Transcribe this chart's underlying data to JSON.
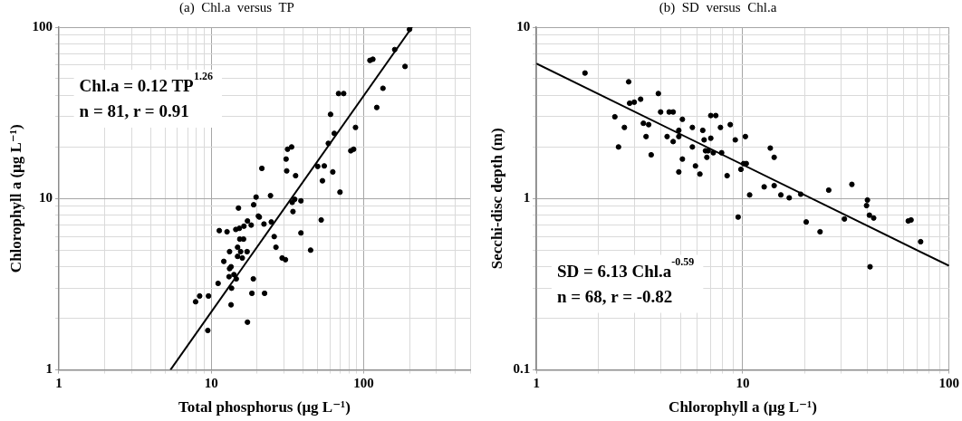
{
  "chart_data": [
    {
      "type": "scatter",
      "title": "(a)  Chl.a  versus  TP",
      "xlabel": "Total phosphorus (μg L⁻¹)",
      "ylabel": "Chlorophyll a (μg L⁻¹)",
      "annotations": [
        "Chl.a = 0.12 TP$^{1.26}$",
        "n = 81, r = 0.91"
      ],
      "log": "xy",
      "xlim": [
        1,
        500
      ],
      "ylim": [
        1,
        100
      ],
      "xticks": [
        1,
        {
          "value": 2,
          "label": null
        },
        {
          "value": 3,
          "label": null
        },
        {
          "value": 4,
          "label": null
        },
        {
          "value": 5,
          "label": null
        },
        {
          "value": 6,
          "label": null
        },
        {
          "value": 7,
          "label": null
        },
        {
          "value": 8,
          "label": null
        },
        {
          "value": 9,
          "label": null
        },
        10,
        {
          "value": 20,
          "label": null
        },
        {
          "value": 30,
          "label": null
        },
        {
          "value": 40,
          "label": null
        },
        {
          "value": 50,
          "label": null
        },
        {
          "value": 60,
          "label": null
        },
        {
          "value": 70,
          "label": null
        },
        {
          "value": 80,
          "label": null
        },
        {
          "value": 90,
          "label": null
        },
        100,
        {
          "value": 200,
          "label": null
        },
        {
          "value": 300,
          "label": null
        },
        {
          "value": 400,
          "label": null
        },
        {
          "value": 500,
          "label": null
        }
      ],
      "yticks": [
        1,
        {
          "value": 2,
          "label": null
        },
        {
          "value": 3,
          "label": null
        },
        {
          "value": 4,
          "label": null
        },
        {
          "value": 5,
          "label": null
        },
        {
          "value": 6,
          "label": null
        },
        {
          "value": 7,
          "label": null
        },
        {
          "value": 8,
          "label": null
        },
        {
          "value": 9,
          "label": null
        },
        10,
        {
          "value": 20,
          "label": null
        },
        {
          "value": 30,
          "label": null
        },
        {
          "value": 40,
          "label": null
        },
        {
          "value": 50,
          "label": null
        },
        {
          "value": 60,
          "label": null
        },
        {
          "value": 70,
          "label": null
        },
        {
          "value": 80,
          "label": null
        },
        {
          "value": 90,
          "label": null
        },
        100
      ],
      "grid": true,
      "legend": false,
      "marker": "circle",
      "series": [
        {
          "type": "scatter",
          "color": "#000000",
          "x": [
            7.9,
            8.4,
            9.6,
            9.5,
            11.1,
            13.5,
            13.6,
            13.1,
            14.1,
            14.6,
            13.2,
            13.5,
            12.1,
            13.2,
            14.9,
            14.9,
            15.6,
            16.0,
            17.2,
            15.4,
            16.3,
            14.5,
            15.3,
            16.4,
            17.3,
            18.3,
            11.3,
            12.7,
            15.1,
            19.0,
            19.7,
            20.4,
            20.7,
            22.2,
            24.5,
            24.8,
            25.9,
            26.6,
            29.2,
            30.7,
            38.8,
            44.9,
            52.7,
            34.4,
            34.0,
            35.3,
            38.8,
            70,
            17.3,
            18.9,
            18.5,
            22.4,
            35.8,
            53.7,
            200,
            160,
            187,
            110,
            115,
            134,
            122,
            68.5,
            74,
            60.7,
            64.2,
            58.7,
            88.5,
            82.4,
            86,
            31.7,
            33.7,
            31.0,
            21.5,
            31.3,
            50,
            55.2,
            62.8
          ],
          "values": [
            2.5,
            2.7,
            2.7,
            1.7,
            3.2,
            2.4,
            3.0,
            3.5,
            3.6,
            3.4,
            3.9,
            4.0,
            4.3,
            4.9,
            5.2,
            4.6,
            4.9,
            4.5,
            4.9,
            5.8,
            5.8,
            6.6,
            6.7,
            6.9,
            7.4,
            7.0,
            6.5,
            6.4,
            8.8,
            9.2,
            10.2,
            7.9,
            7.8,
            7.1,
            10.4,
            7.3,
            6.0,
            5.2,
            4.5,
            4.4,
            6.3,
            5.0,
            7.5,
            8.4,
            9.5,
            9.9,
            9.7,
            10.9,
            1.9,
            3.4,
            2.8,
            2.8,
            13.6,
            12.7,
            97,
            74,
            59,
            64,
            65,
            44,
            34,
            41,
            41,
            31,
            24,
            21,
            26,
            19,
            19.4,
            19.4,
            20,
            17,
            15,
            14.5,
            15.4,
            15.5,
            14.3
          ]
        },
        {
          "type": "line",
          "color": "#000000",
          "marker": "none",
          "x": [
            5.4,
            208
          ],
          "values": [
            1,
            100
          ]
        }
      ]
    },
    {
      "type": "scatter",
      "title": "(b)  SD  versus  Chl.a",
      "xlabel": "Chlorophyll a (μg L⁻¹)",
      "ylabel": "Secchi-disc depth (m)",
      "annotations": [
        "SD = 6.13 Chl.a$^{-0.59}$",
        "n = 68, r = -0.82"
      ],
      "log": "xy",
      "xlim": [
        1,
        100
      ],
      "ylim": [
        0.1,
        10
      ],
      "xticks": [
        1,
        {
          "value": 2,
          "label": null
        },
        {
          "value": 3,
          "label": null
        },
        {
          "value": 4,
          "label": null
        },
        {
          "value": 5,
          "label": null
        },
        {
          "value": 6,
          "label": null
        },
        {
          "value": 7,
          "label": null
        },
        {
          "value": 8,
          "label": null
        },
        {
          "value": 9,
          "label": null
        },
        10,
        {
          "value": 20,
          "label": null
        },
        {
          "value": 30,
          "label": null
        },
        {
          "value": 40,
          "label": null
        },
        {
          "value": 50,
          "label": null
        },
        {
          "value": 60,
          "label": null
        },
        {
          "value": 70,
          "label": null
        },
        {
          "value": 80,
          "label": null
        },
        {
          "value": 90,
          "label": null
        },
        100
      ],
      "yticks": [
        0.1,
        {
          "value": 0.2,
          "label": null
        },
        {
          "value": 0.3,
          "label": null
        },
        {
          "value": 0.4,
          "label": null
        },
        {
          "value": 0.5,
          "label": null
        },
        {
          "value": 0.6,
          "label": null
        },
        {
          "value": 0.7,
          "label": null
        },
        {
          "value": 0.8,
          "label": null
        },
        {
          "value": 0.9,
          "label": null
        },
        1,
        {
          "value": 2,
          "label": null
        },
        {
          "value": 3,
          "label": null
        },
        {
          "value": 4,
          "label": null
        },
        {
          "value": 5,
          "label": null
        },
        {
          "value": 6,
          "label": null
        },
        {
          "value": 7,
          "label": null
        },
        {
          "value": 8,
          "label": null
        },
        {
          "value": 9,
          "label": null
        },
        10
      ],
      "grid": true,
      "legend": false,
      "marker": "circle",
      "series": [
        {
          "type": "scatter",
          "color": "#000000",
          "x": [
            1.72,
            2.8,
            2.4,
            2.5,
            2.67,
            2.83,
            2.98,
            3.2,
            3.9,
            4.0,
            4.4,
            4.6,
            3.3,
            3.5,
            3.4,
            3.6,
            4.3,
            4.6,
            4.9,
            4.9,
            5.1,
            5.1,
            4.9,
            5.7,
            5.7,
            5.9,
            6.2,
            6.4,
            6.5,
            6.6,
            6.8,
            6.7,
            7.0,
            7.4,
            7.0,
            7.2,
            7.8,
            7.9,
            8.7,
            8.4,
            9.2,
            9.8,
            10.1,
            10.4,
            10.3,
            13.6,
            14.2,
            12.7,
            14.2,
            26.1,
            33.8,
            10.8,
            15.3,
            16.8,
            19.1,
            9.5,
            20.3,
            23.7,
            31.1,
            40.2,
            39.8,
            41.1,
            43.1,
            41.4,
            63.4,
            65.4,
            72.8
          ],
          "values": [
            5.4,
            4.8,
            3.0,
            2.0,
            2.6,
            3.6,
            3.65,
            3.8,
            4.1,
            3.2,
            3.2,
            3.2,
            2.75,
            2.7,
            2.3,
            1.8,
            2.3,
            2.15,
            2.5,
            2.3,
            2.9,
            1.7,
            1.43,
            2.6,
            2.0,
            1.55,
            1.39,
            2.5,
            2.2,
            1.9,
            1.9,
            1.74,
            3.05,
            3.05,
            2.25,
            1.85,
            2.6,
            1.85,
            2.7,
            1.36,
            2.2,
            1.48,
            1.6,
            1.6,
            2.3,
            1.97,
            1.74,
            1.17,
            1.19,
            1.12,
            1.21,
            1.05,
            1.05,
            1.01,
            1.06,
            0.78,
            0.73,
            0.64,
            0.76,
            0.98,
            0.91,
            0.8,
            0.77,
            0.4,
            0.74,
            0.75,
            0.56
          ]
        },
        {
          "type": "line",
          "color": "#000000",
          "marker": "none",
          "x": [
            1,
            100
          ],
          "values": [
            6.13,
            0.405
          ]
        }
      ]
    }
  ]
}
